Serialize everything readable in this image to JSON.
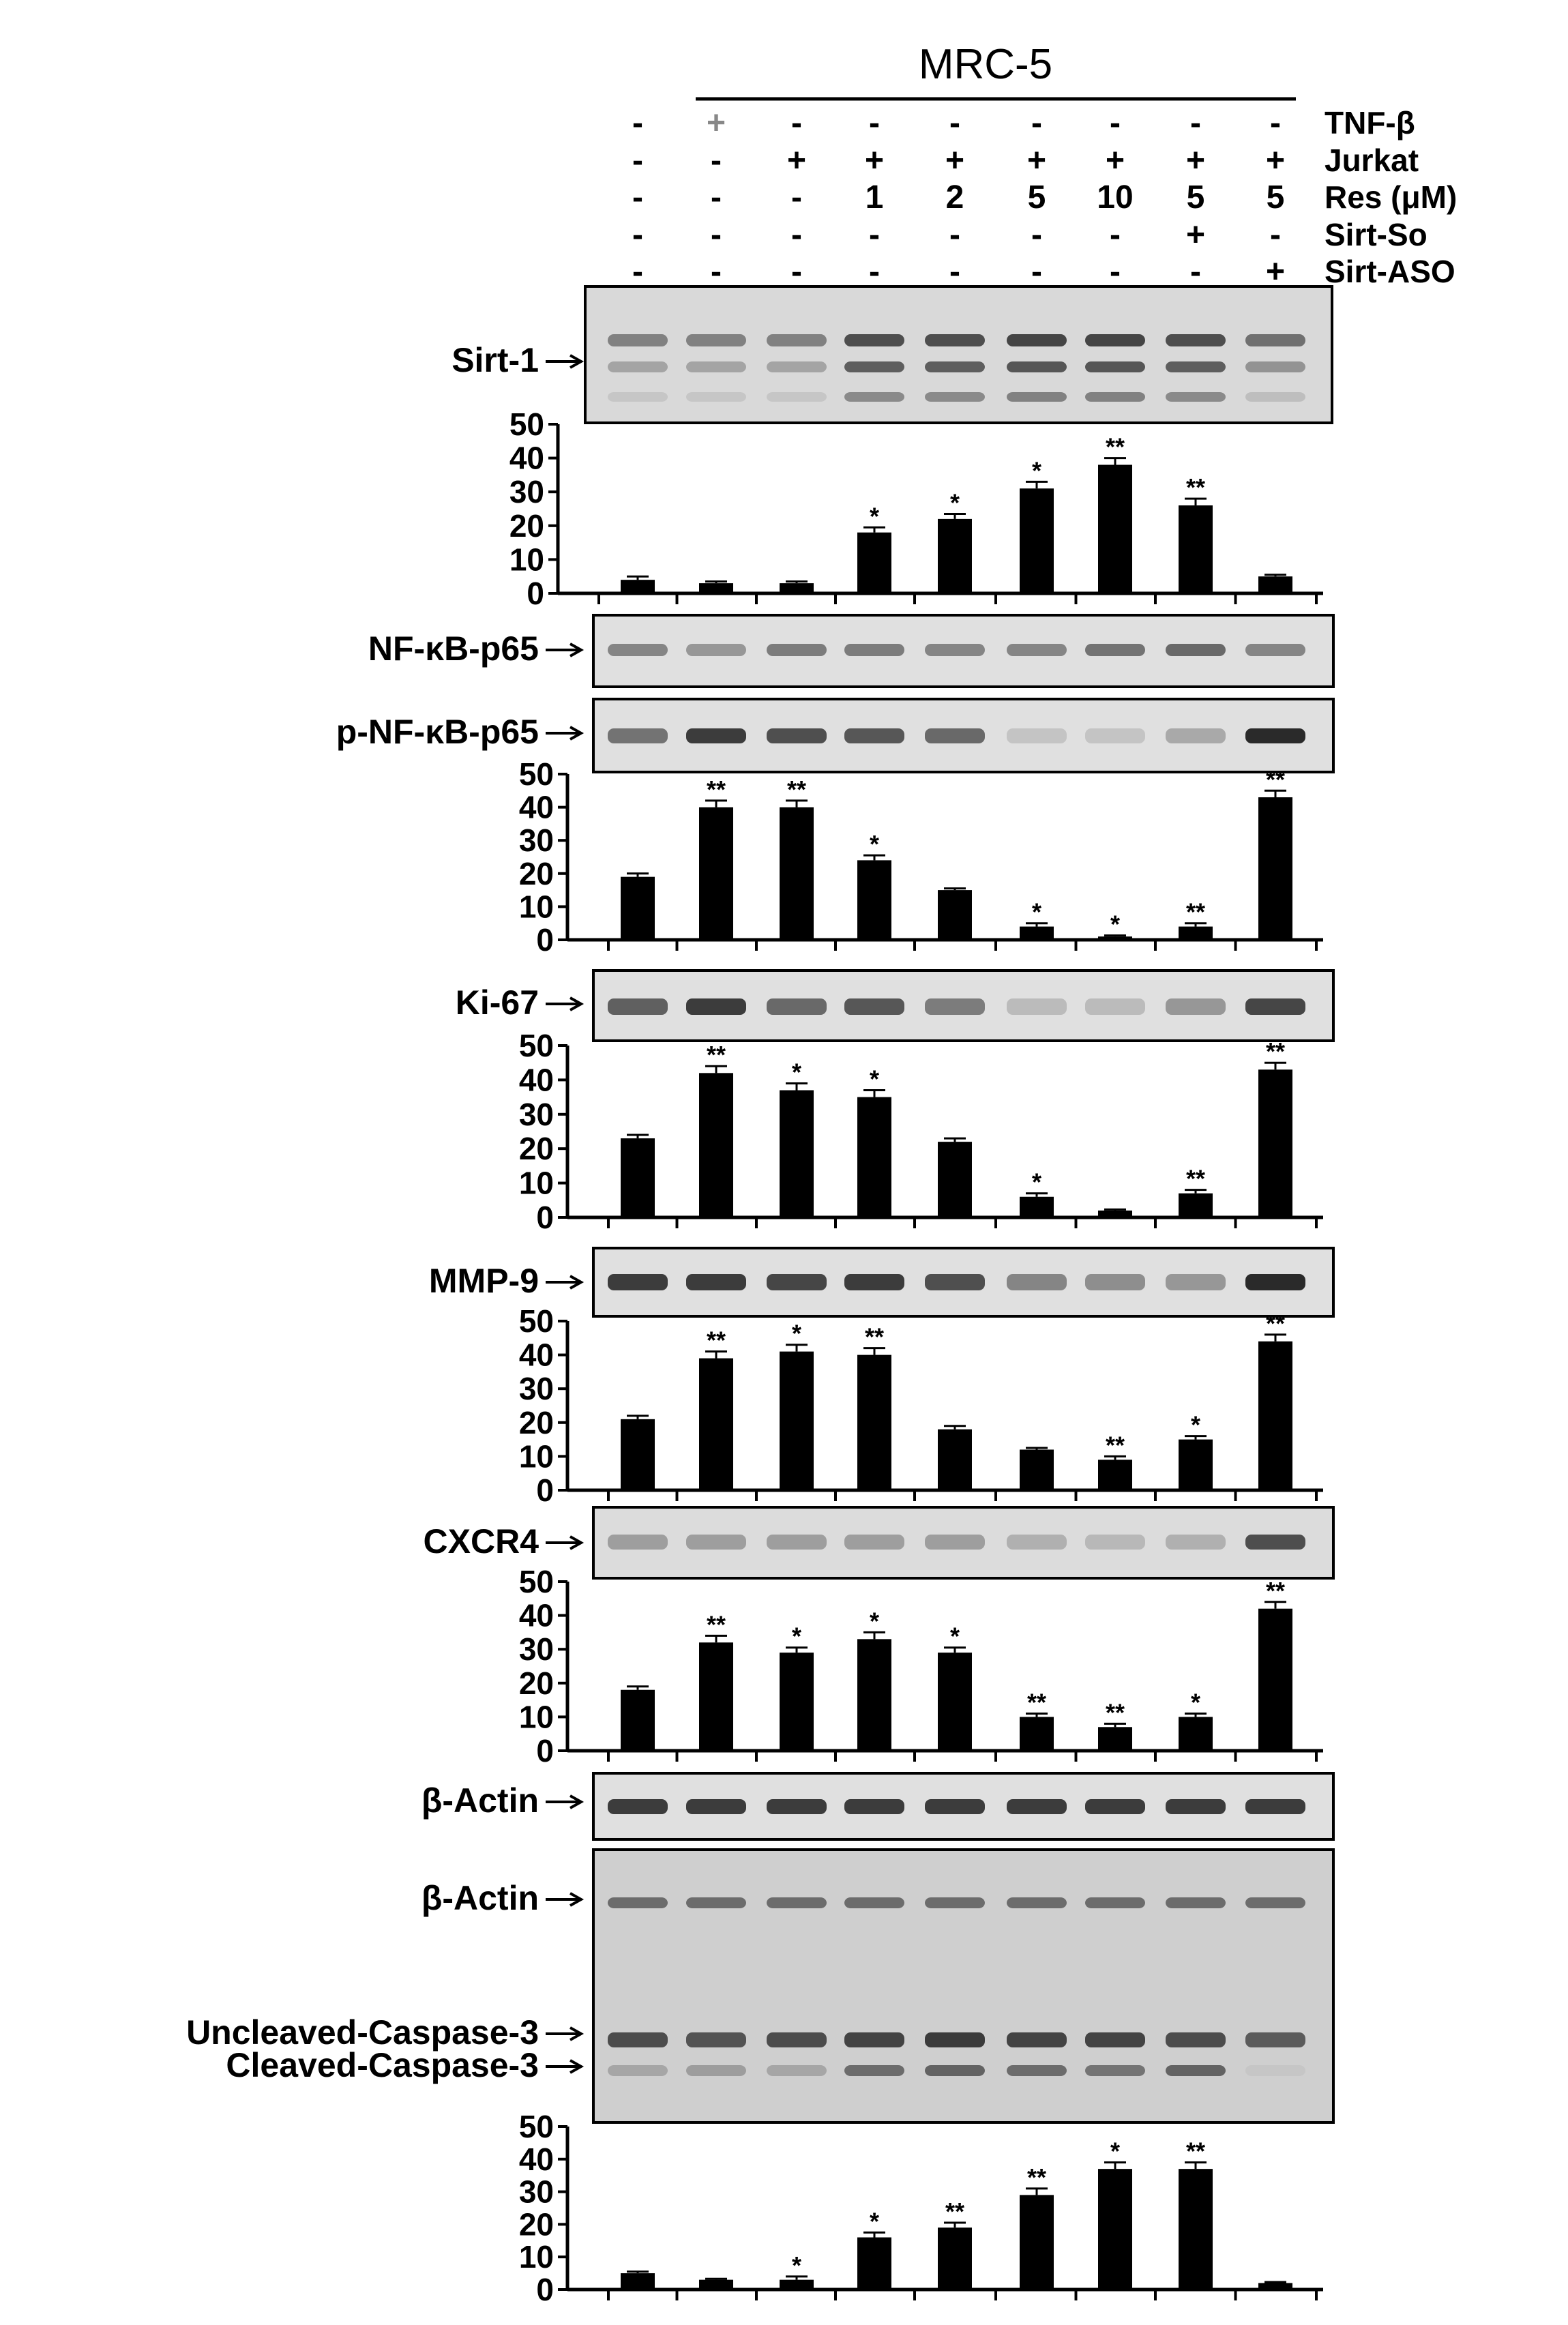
{
  "header": {
    "cell_line": "MRC-5",
    "conditions": [
      {
        "label": "TNF-β",
        "values": [
          "-",
          "+",
          "-",
          "-",
          "-",
          "-",
          "-",
          "-",
          "-"
        ]
      },
      {
        "label": "Jurkat",
        "values": [
          "-",
          "-",
          "+",
          "+",
          "+",
          "+",
          "+",
          "+",
          "+"
        ]
      },
      {
        "label": "Res (μM)",
        "values": [
          "-",
          "-",
          "-",
          "1",
          "2",
          "5",
          "10",
          "5",
          "5"
        ]
      },
      {
        "label": "Sirt-So",
        "values": [
          "-",
          "-",
          "-",
          "-",
          "-",
          "-",
          "-",
          "+",
          "-"
        ]
      },
      {
        "label": "Sirt-ASO",
        "values": [
          "-",
          "-",
          "-",
          "-",
          "-",
          "-",
          "-",
          "-",
          "+"
        ]
      }
    ]
  },
  "blots": {
    "sirt1": "Sirt-1",
    "nfkb": "NF-κB-p65",
    "pnfkb": "p-NF-κB-p65",
    "ki67": "Ki-67",
    "mmp9": "MMP-9",
    "cxcr4": "CXCR4",
    "actin1": "β-Actin",
    "actin2": "β-Actin",
    "uncleaved": "Uncleaved-Caspase-3",
    "cleaved": "Cleaved-Caspase-3"
  },
  "colors": {
    "bar": "#000000",
    "band": "#2a2a2a",
    "blot_bg": "#d9d9d9"
  },
  "chart_data": [
    {
      "type": "bar",
      "ylim": [
        0,
        50
      ],
      "yticks": [
        "0",
        "10",
        "20",
        "30",
        "40",
        "50"
      ],
      "values": [
        4,
        3,
        3,
        18,
        22,
        31,
        38,
        26,
        5
      ],
      "errors": [
        1,
        0.5,
        0.5,
        1.5,
        1.5,
        2,
        2,
        2,
        0.5
      ],
      "annotations": [
        "",
        "",
        "",
        "*",
        "*",
        "*",
        "**",
        "**",
        ""
      ]
    },
    {
      "type": "bar",
      "ylim": [
        0,
        50
      ],
      "yticks": [
        "0",
        "10",
        "20",
        "30",
        "40",
        "50"
      ],
      "values": [
        19,
        40,
        40,
        24,
        15,
        4,
        1,
        4,
        43
      ],
      "errors": [
        1,
        2,
        2,
        1.5,
        0.5,
        1,
        0.3,
        1,
        2
      ],
      "annotations": [
        "",
        "**",
        "**",
        "*",
        "",
        "*",
        "*",
        "**",
        "**"
      ]
    },
    {
      "type": "bar",
      "ylim": [
        0,
        50
      ],
      "yticks": [
        "0",
        "10",
        "20",
        "30",
        "40",
        "50"
      ],
      "values": [
        23,
        42,
        37,
        35,
        22,
        6,
        2,
        7,
        43
      ],
      "errors": [
        1,
        2,
        2,
        2,
        1,
        1,
        0.3,
        1,
        2
      ],
      "annotations": [
        "",
        "**",
        "*",
        "*",
        "",
        "*",
        "",
        "**",
        "**"
      ]
    },
    {
      "type": "bar",
      "ylim": [
        0,
        50
      ],
      "yticks": [
        "0",
        "10",
        "20",
        "30",
        "40",
        "50"
      ],
      "values": [
        21,
        39,
        41,
        40,
        18,
        12,
        9,
        15,
        44
      ],
      "errors": [
        1,
        2,
        2,
        2,
        1,
        0.5,
        1,
        1,
        2
      ],
      "annotations": [
        "",
        "**",
        "*",
        "**",
        "",
        "",
        "**",
        "*",
        "**"
      ]
    },
    {
      "type": "bar",
      "ylim": [
        0,
        50
      ],
      "yticks": [
        "0",
        "10",
        "20",
        "30",
        "40",
        "50"
      ],
      "values": [
        18,
        32,
        29,
        33,
        29,
        10,
        7,
        10,
        42
      ],
      "errors": [
        1,
        2,
        1.5,
        2,
        1.5,
        1,
        1,
        1,
        2
      ],
      "annotations": [
        "",
        "**",
        "*",
        "*",
        "*",
        "**",
        "**",
        "*",
        "**"
      ]
    },
    {
      "type": "bar",
      "ylim": [
        0,
        50
      ],
      "yticks": [
        "0",
        "10",
        "20",
        "30",
        "40",
        "50"
      ],
      "values": [
        5,
        3,
        3,
        16,
        19,
        29,
        37,
        37,
        2
      ],
      "errors": [
        0.5,
        0.3,
        1,
        1.5,
        1.5,
        2,
        2,
        2,
        0.3
      ],
      "annotations": [
        "",
        "",
        "*",
        "*",
        "**",
        "**",
        "*",
        "**",
        ""
      ]
    }
  ]
}
